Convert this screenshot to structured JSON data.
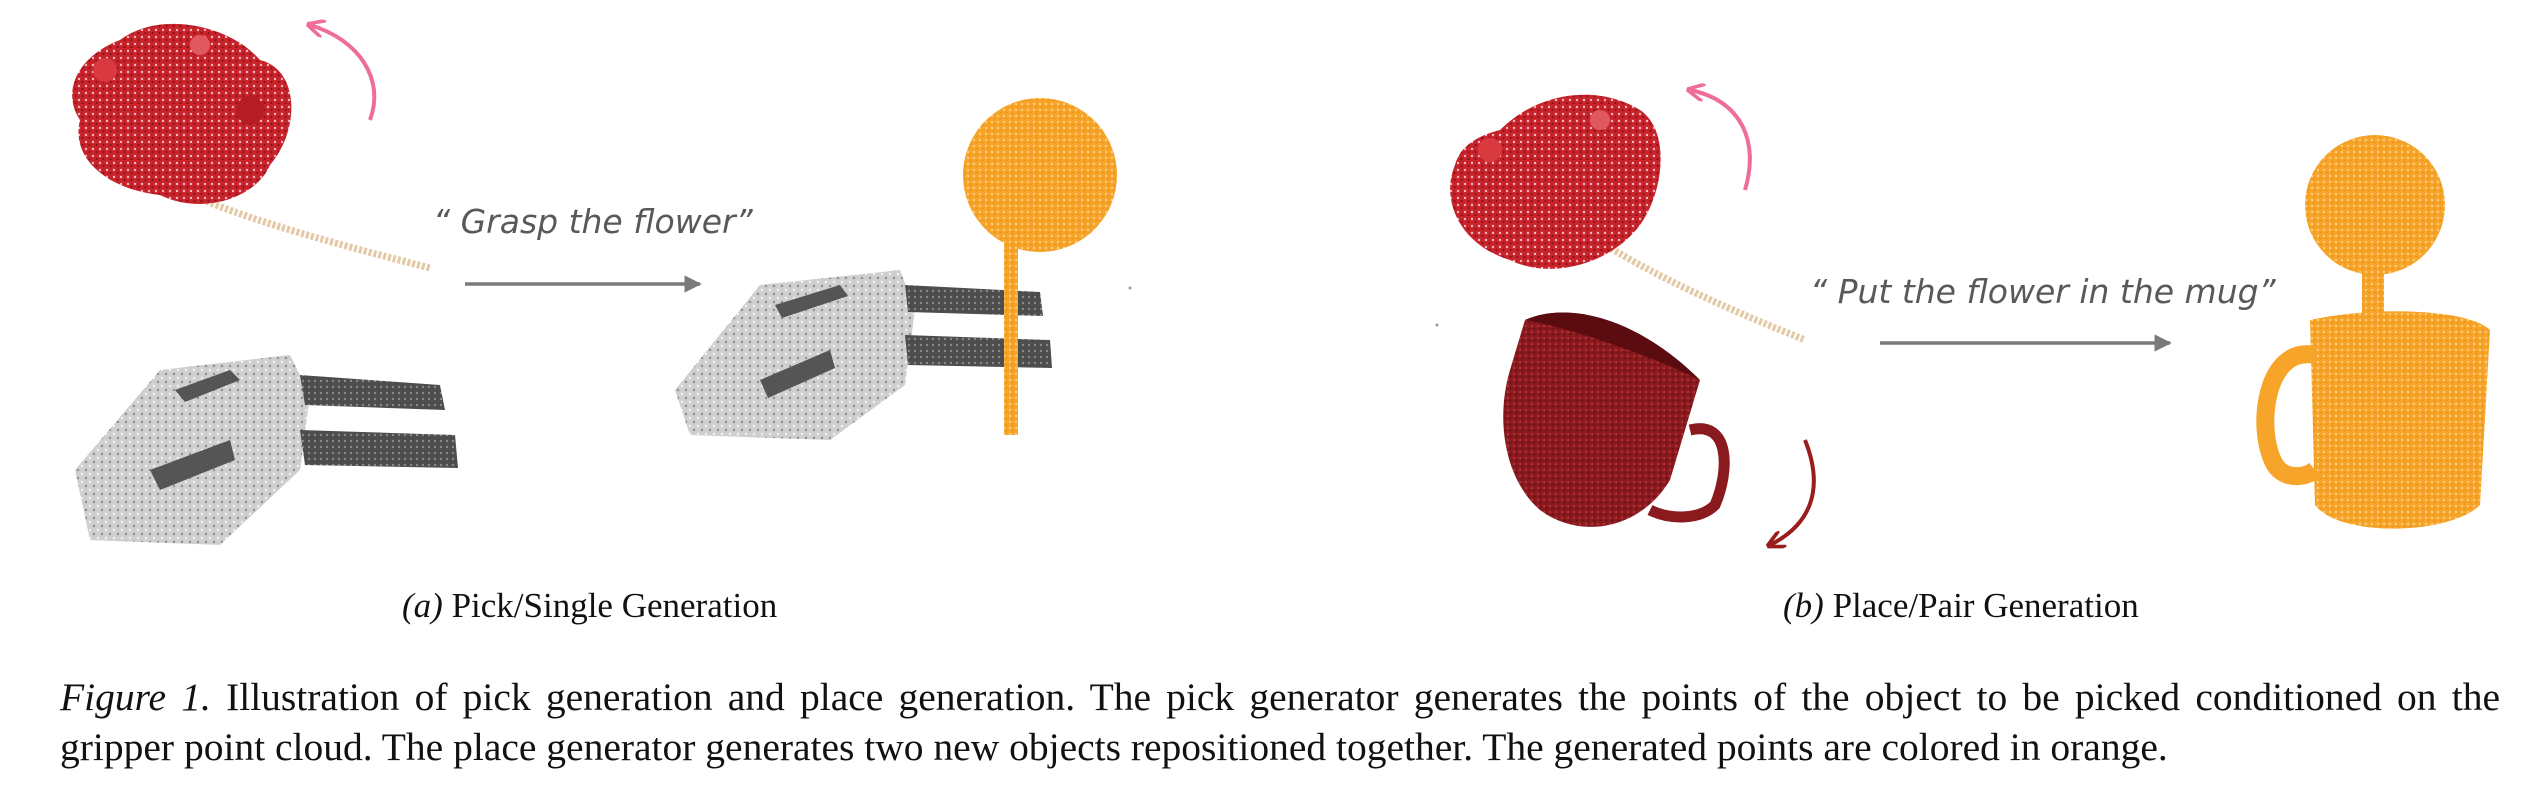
{
  "panel_a": {
    "prompt": "“ Grasp the flower”",
    "label": "(a)",
    "title": "Pick/Single Generation"
  },
  "panel_b": {
    "prompt": "“ Put the flower in the mug”",
    "label": "(b)",
    "title": "Place/Pair Generation"
  },
  "caption": {
    "label": "Figure 1.",
    "text": "Illustration of pick generation and place generation. The pick generator generates the points of the object to be picked conditioned on the gripper point cloud. The place generator generates two new objects repositioned together. The generated points are colored in orange."
  },
  "colors": {
    "flower_red": "#c8222a",
    "generated_orange": "#f5a623",
    "mug_red": "#8b1a1f",
    "stem_beige": "#e3c9a6",
    "gripper_gray": "#bdbdbd",
    "arrow_gray": "#7a7a7a",
    "rotation_pink": "#ee6d9b",
    "rotation_darkred": "#9a1c1c"
  }
}
